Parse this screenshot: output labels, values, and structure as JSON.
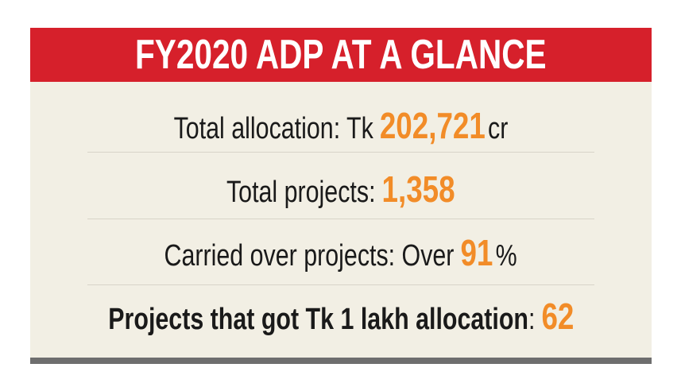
{
  "header": {
    "title": "FY2020 ADP AT A GLANCE"
  },
  "rows": [
    {
      "label": "Total allocation: Tk",
      "value": "202,721",
      "unit": "cr"
    },
    {
      "label": "Total projects:",
      "value": "1,358"
    },
    {
      "label": "Carried over projects: Over",
      "value": "91",
      "unit": "%"
    },
    {
      "label": "Projects that got Tk 1 lakh allocation",
      "separator": ":",
      "value": "62"
    }
  ]
}
